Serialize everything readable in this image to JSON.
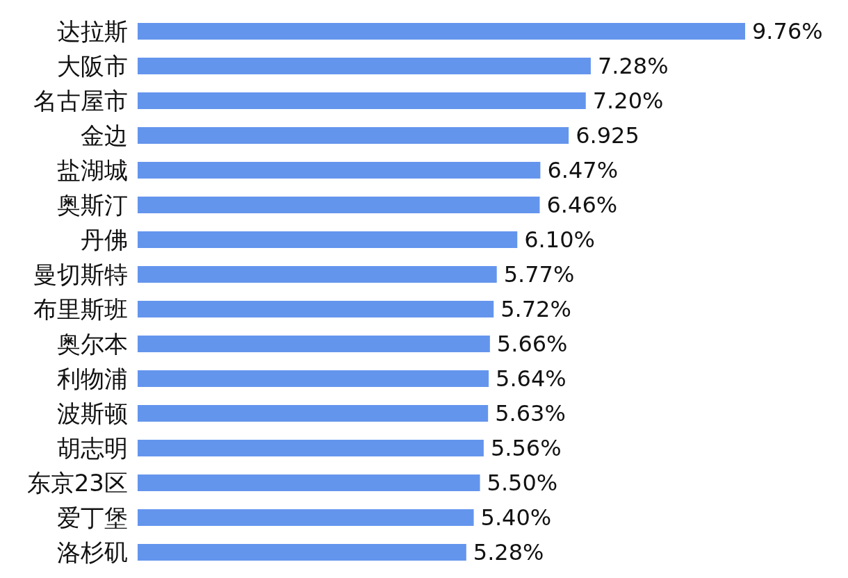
{
  "chart_data": {
    "type": "bar",
    "orientation": "horizontal",
    "categories": [
      "达拉斯",
      "大阪市",
      "名古屋市",
      "金边",
      "盐湖城",
      "奥斯汀",
      "丹佛",
      "曼切斯特",
      "布里斯班",
      "奥尔本",
      "利物浦",
      "波斯顿",
      "胡志明",
      "东京23区",
      "爱丁堡",
      "洛杉矶"
    ],
    "values": [
      9.76,
      7.28,
      7.2,
      6.925,
      6.47,
      6.46,
      6.1,
      5.77,
      5.72,
      5.66,
      5.64,
      5.63,
      5.56,
      5.5,
      5.4,
      5.28
    ],
    "value_labels": [
      "9.76%",
      "7.28%",
      "7.20%",
      "6.925",
      "6.47%",
      "6.46%",
      "6.10%",
      "5.77%",
      "5.72%",
      "5.66%",
      "5.64%",
      "5.63%",
      "5.56%",
      "5.50%",
      "5.40%",
      "5.28%"
    ],
    "color": "#6495ed"
  }
}
